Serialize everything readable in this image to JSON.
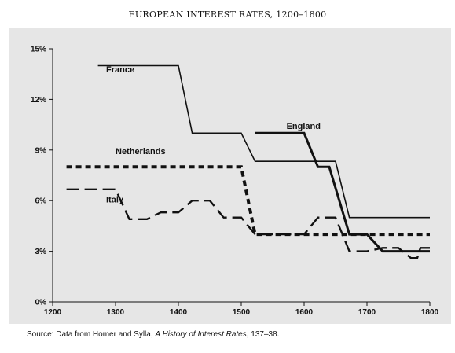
{
  "chart_data": {
    "type": "line",
    "title": "EUROPEAN INTEREST RATES, 1200–1800",
    "xlabel": "",
    "ylabel": "",
    "xlim": [
      1200,
      1800
    ],
    "ylim": [
      0,
      15
    ],
    "xticks": [
      1200,
      1300,
      1400,
      1500,
      1600,
      1700,
      1800
    ],
    "yticks": [
      0,
      3,
      6,
      9,
      12,
      15
    ],
    "ytick_labels": [
      "0%",
      "3%",
      "6%",
      "9%",
      "12%",
      "15%"
    ],
    "grid": false,
    "series": [
      {
        "name": "France",
        "style": "solid",
        "stroke_width": 1.6,
        "label_at": [
          1285,
          13.6
        ],
        "points": [
          [
            1272,
            14
          ],
          [
            1400,
            14
          ],
          [
            1422,
            10
          ],
          [
            1500,
            10
          ],
          [
            1522,
            8.33
          ],
          [
            1650,
            8.33
          ],
          [
            1672,
            5
          ],
          [
            1800,
            5
          ]
        ]
      },
      {
        "name": "England",
        "style": "solid",
        "stroke_width": 3,
        "label_at": [
          1572,
          10.25
        ],
        "points": [
          [
            1522,
            10
          ],
          [
            1600,
            10
          ],
          [
            1622,
            8
          ],
          [
            1640,
            8
          ],
          [
            1672,
            4
          ],
          [
            1700,
            4
          ],
          [
            1725,
            3
          ],
          [
            1800,
            3
          ]
        ]
      },
      {
        "name": "Netherlands",
        "style": "dashed",
        "stroke_width": 4,
        "label_at": [
          1300,
          8.75
        ],
        "points": [
          [
            1222,
            8
          ],
          [
            1500,
            8
          ],
          [
            1522,
            4
          ],
          [
            1800,
            4
          ]
        ]
      },
      {
        "name": "Italy",
        "style": "long-dash",
        "stroke_width": 2.4,
        "label_at": [
          1285,
          5.9
        ],
        "points": [
          [
            1222,
            6.67
          ],
          [
            1300,
            6.67
          ],
          [
            1322,
            4.9
          ],
          [
            1350,
            4.9
          ],
          [
            1372,
            5.3
          ],
          [
            1400,
            5.3
          ],
          [
            1422,
            6
          ],
          [
            1450,
            6
          ],
          [
            1472,
            5
          ],
          [
            1500,
            5
          ],
          [
            1522,
            4
          ],
          [
            1600,
            4
          ],
          [
            1622,
            5
          ],
          [
            1650,
            5
          ],
          [
            1672,
            3
          ],
          [
            1700,
            3
          ],
          [
            1725,
            3.2
          ],
          [
            1750,
            3.2
          ],
          [
            1770,
            2.6
          ],
          [
            1780,
            2.6
          ],
          [
            1785,
            3.2
          ],
          [
            1800,
            3.2
          ]
        ]
      }
    ]
  },
  "source": {
    "prefix": "Source: Data from Homer and Sylla, ",
    "book_title": "A History of Interest Rates",
    "suffix": ", 137–38."
  }
}
